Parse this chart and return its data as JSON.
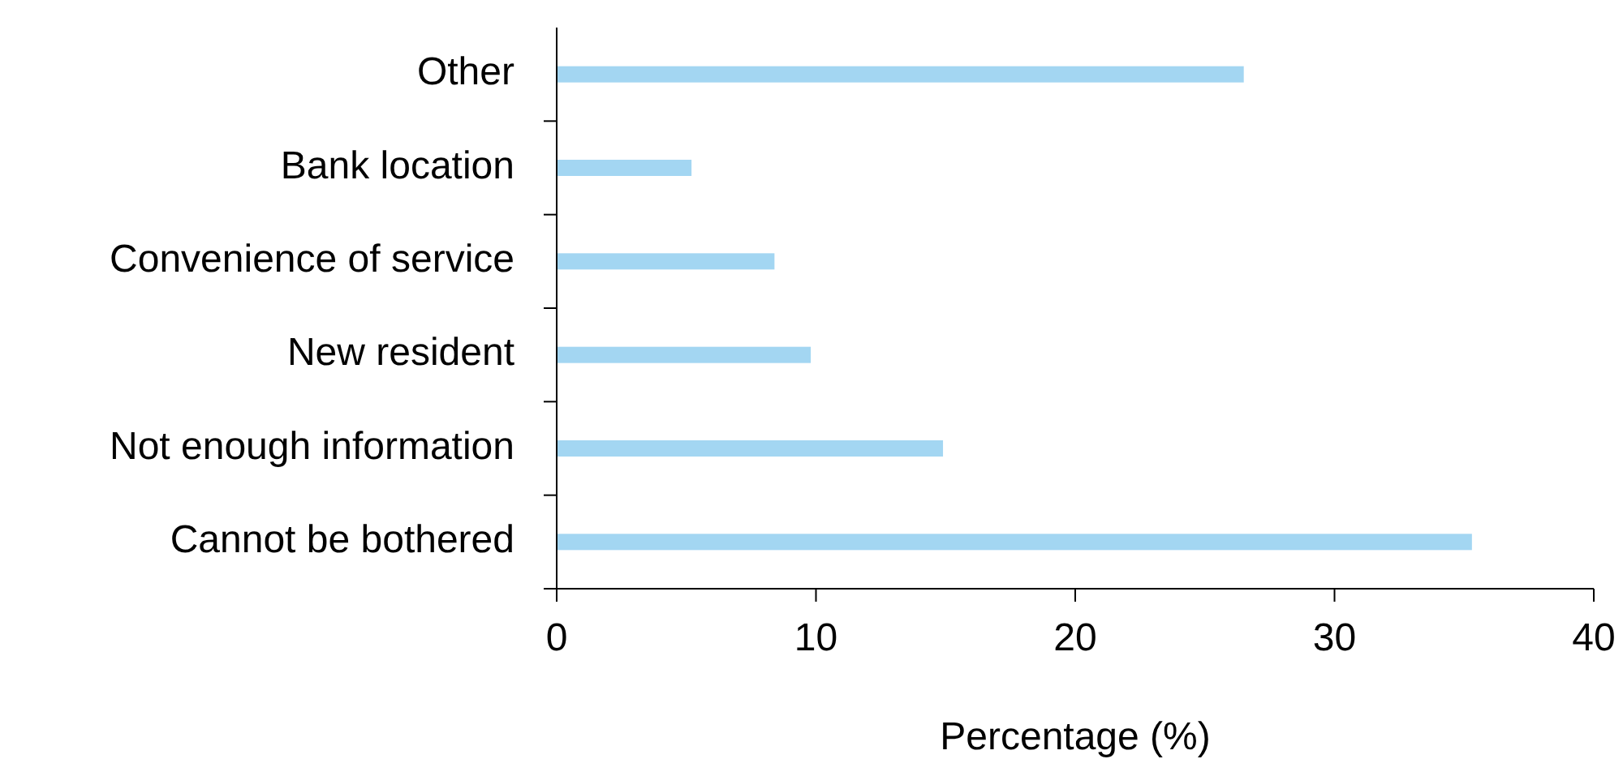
{
  "chart_data": {
    "type": "bar",
    "orientation": "horizontal",
    "xlabel": "Percentage (%)",
    "categories": [
      "Other",
      "Bank location",
      "Convenience of service",
      "New resident",
      "Not enough information",
      "Cannot be bothered"
    ],
    "values": [
      26.5,
      5.2,
      8.4,
      9.8,
      14.9,
      35.3
    ],
    "color": "#a3d6f2",
    "xlim": [
      0,
      40
    ],
    "xticks": [
      0,
      10,
      20,
      30,
      40
    ],
    "grid": false
  }
}
